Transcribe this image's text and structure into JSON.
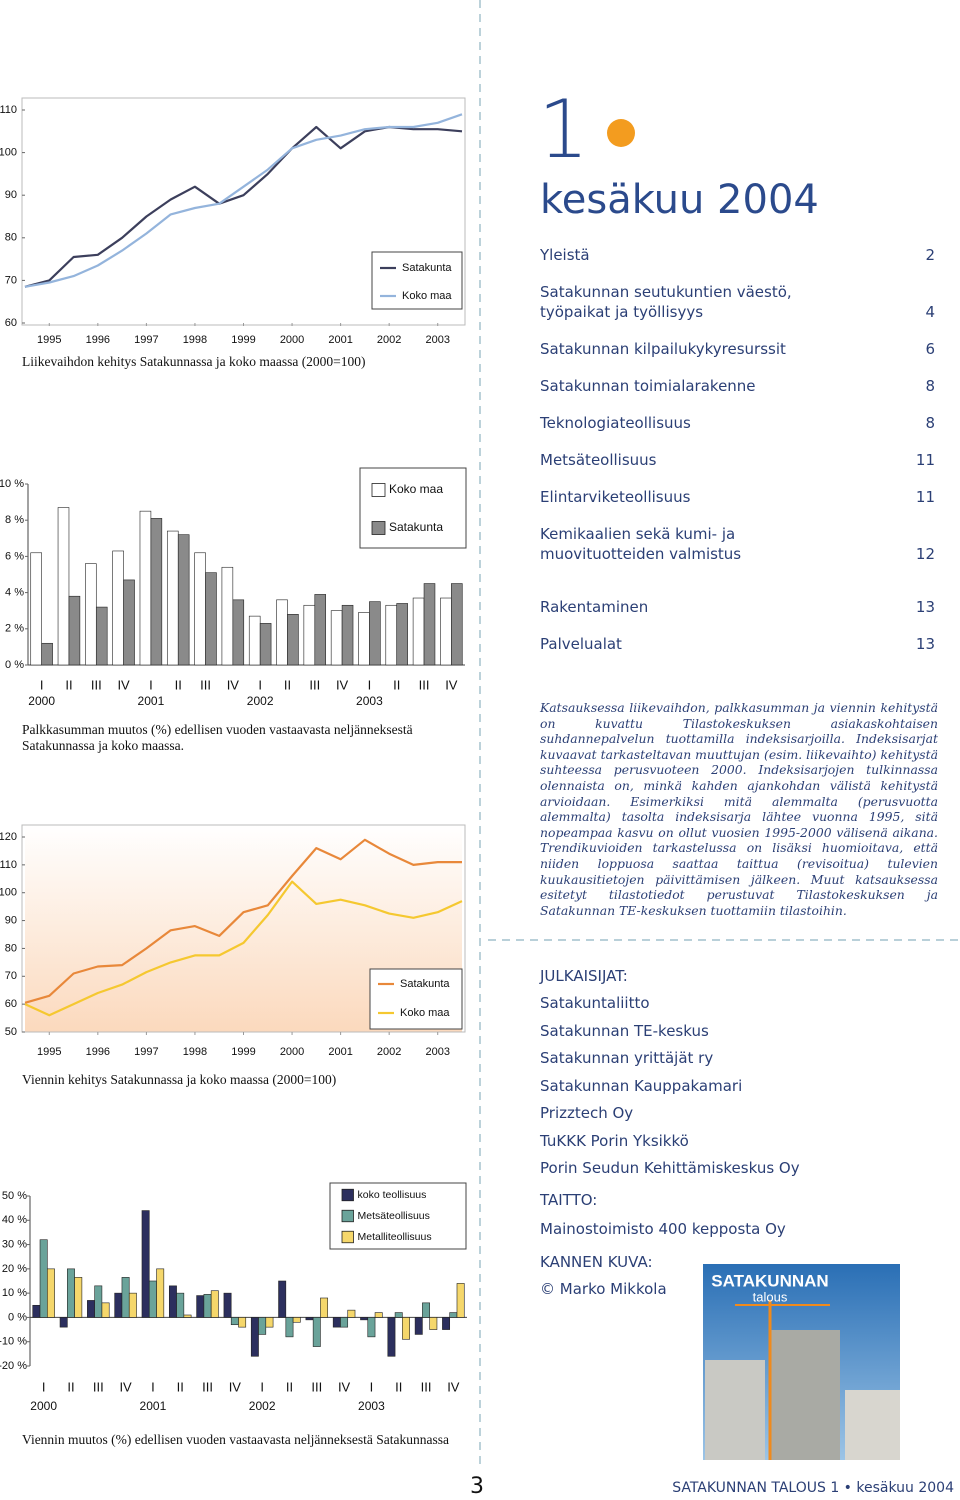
{
  "chart_data": [
    {
      "type": "line",
      "caption": "Liikevaihdon kehitys Satakunnassa ja koko maassa (2000=100)",
      "x": [
        1995,
        1995.5,
        1996,
        1996.5,
        1997,
        1997.5,
        1998,
        1998.5,
        1999,
        1999.5,
        2000,
        2000.5,
        2001,
        2001.5,
        2002,
        2002.5,
        2003,
        2003.5,
        2004
      ],
      "xlim": [
        1995,
        2004
      ],
      "xticks": [
        {
          "value": 1995.5,
          "label": "1995"
        },
        {
          "value": 1996.5,
          "label": "1996"
        },
        {
          "value": 1997.5,
          "label": "1997"
        },
        {
          "value": 1998.5,
          "label": "1998"
        },
        {
          "value": 1999.5,
          "label": "1999"
        },
        {
          "value": 2000.5,
          "label": "2000"
        },
        {
          "value": 2001.5,
          "label": "2001"
        },
        {
          "value": 2002.5,
          "label": "2002"
        },
        {
          "value": 2003.5,
          "label": "2003"
        }
      ],
      "ylim": [
        60,
        110
      ],
      "yticks": [
        60,
        70,
        80,
        90,
        100,
        110
      ],
      "series": [
        {
          "name": "Satakunta",
          "color": "#3c3f5c",
          "values": [
            68.5,
            70,
            75.5,
            76,
            80,
            85,
            89,
            92,
            88,
            90,
            95,
            101,
            106,
            101,
            105,
            106,
            105.5,
            105.5,
            105
          ]
        },
        {
          "name": "Koko maa",
          "color": "#94b4dc",
          "values": [
            68.5,
            69.5,
            71,
            73.5,
            77,
            81,
            85.5,
            87,
            88,
            92,
            96,
            101,
            103,
            104,
            105.5,
            106,
            106,
            107,
            109
          ]
        }
      ]
    },
    {
      "type": "bar",
      "caption": "Palkkasumman muutos (%) edellisen vuoden vastaavasta neljänneksestä Satakunnassa ja koko maassa.",
      "categories": [
        "I",
        "II",
        "III",
        "IV",
        "I",
        "II",
        "III",
        "IV",
        "I",
        "II",
        "III",
        "IV",
        "I",
        "II",
        "III",
        "IV"
      ],
      "years": [
        "2000",
        "2001",
        "2002",
        "2003"
      ],
      "ylim": [
        0,
        10
      ],
      "yticks": [
        {
          "value": 0,
          "label": "0 %"
        },
        {
          "value": 2,
          "label": "2 %"
        },
        {
          "value": 4,
          "label": "4 %"
        },
        {
          "value": 6,
          "label": "6 %"
        },
        {
          "value": 8,
          "label": "8 %"
        },
        {
          "value": 10,
          "label": "10 %"
        }
      ],
      "series": [
        {
          "name": "Koko maa",
          "color": "#ffffff",
          "values": [
            6.2,
            8.7,
            5.6,
            6.3,
            8.5,
            7.4,
            6.2,
            5.4,
            2.7,
            3.6,
            3.3,
            3.0,
            2.9,
            3.3,
            3.7,
            3.7
          ]
        },
        {
          "name": "Satakunta",
          "color": "#8a8a8a",
          "values": [
            1.2,
            3.8,
            3.2,
            4.7,
            8.1,
            7.2,
            5.1,
            3.6,
            2.3,
            2.8,
            3.9,
            3.3,
            3.5,
            3.4,
            4.5,
            4.5
          ]
        }
      ]
    },
    {
      "type": "line",
      "caption": "Viennin kehitys Satakunnassa ja koko maassa (2000=100)",
      "x": [
        1995,
        1995.5,
        1996,
        1996.5,
        1997,
        1997.5,
        1998,
        1998.5,
        1999,
        1999.5,
        2000,
        2000.5,
        2001,
        2001.5,
        2002,
        2002.5,
        2003,
        2003.5,
        2004
      ],
      "xlim": [
        1995,
        2004
      ],
      "xticks": [
        {
          "value": 1995.5,
          "label": "1995"
        },
        {
          "value": 1996.5,
          "label": "1996"
        },
        {
          "value": 1997.5,
          "label": "1997"
        },
        {
          "value": 1998.5,
          "label": "1998"
        },
        {
          "value": 1999.5,
          "label": "1999"
        },
        {
          "value": 2000.5,
          "label": "2000"
        },
        {
          "value": 2001.5,
          "label": "2001"
        },
        {
          "value": 2002.5,
          "label": "2002"
        },
        {
          "value": 2003.5,
          "label": "2003"
        }
      ],
      "ylim": [
        50,
        120
      ],
      "yticks": [
        50,
        60,
        70,
        80,
        90,
        100,
        110,
        120
      ],
      "series": [
        {
          "name": "Satakunta",
          "color": "#e8883a",
          "values": [
            60.5,
            63,
            71,
            73.5,
            74,
            80,
            86.5,
            88,
            84.5,
            93,
            95.5,
            106,
            116,
            112,
            119,
            114,
            110,
            111,
            111
          ]
        },
        {
          "name": "Koko maa",
          "color": "#f5c830",
          "values": [
            60,
            56,
            60,
            64,
            67,
            71.5,
            75,
            77.5,
            77.5,
            82,
            92,
            104,
            96,
            97.5,
            95.5,
            92.5,
            91,
            93,
            97
          ]
        }
      ]
    },
    {
      "type": "bar",
      "caption": "Viennin muutos (%) edellisen vuoden vastaavasta neljänneksestä Satakunnassa",
      "categories": [
        "I",
        "II",
        "III",
        "IV",
        "I",
        "II",
        "III",
        "IV",
        "I",
        "II",
        "III",
        "IV",
        "I",
        "II",
        "III",
        "IV"
      ],
      "years": [
        "2000",
        "2001",
        "2002",
        "2003"
      ],
      "ylim": [
        -20,
        50
      ],
      "yticks": [
        {
          "value": -20,
          "label": "-20 %"
        },
        {
          "value": -10,
          "label": "-10 %"
        },
        {
          "value": 0,
          "label": "0 %"
        },
        {
          "value": 10,
          "label": "10 %"
        },
        {
          "value": 20,
          "label": "20 %"
        },
        {
          "value": 30,
          "label": "30 %"
        },
        {
          "value": 40,
          "label": "40 %"
        },
        {
          "value": 50,
          "label": "50 %"
        }
      ],
      "series": [
        {
          "name": "koko teollisuus",
          "color": "#2c2f5e",
          "values": [
            5,
            -4,
            7,
            10,
            44,
            13,
            9,
            10,
            -16,
            15,
            -1,
            -4,
            -1,
            -16,
            -7,
            -5
          ]
        },
        {
          "name": "Metsäteollisuus",
          "color": "#6aa39a",
          "values": [
            32,
            20,
            13,
            16.5,
            15,
            10,
            9.5,
            -3,
            -7,
            -8,
            -12,
            -4,
            -8,
            2,
            6,
            2
          ]
        },
        {
          "name": "Metalliteollisuus",
          "color": "#f5d76b",
          "values": [
            20,
            16.5,
            6,
            10,
            20,
            1,
            11,
            -4,
            -4,
            -2,
            8,
            3,
            2,
            -9,
            -5,
            14
          ]
        }
      ]
    }
  ],
  "issue": {
    "number": "1",
    "date": "kesäkuu 2004"
  },
  "contents": [
    {
      "title": "Yleistä",
      "page": 2
    },
    {
      "title": "Satakunnan seutukuntien väestö, työpaikat ja työllisyys",
      "page": 4
    },
    {
      "title": "Satakunnan kilpailukykyresurssit",
      "page": 6
    },
    {
      "title": "Satakunnan toimialarakenne",
      "page": 8
    },
    {
      "title": "Teknologiateollisuus",
      "page": 8
    },
    {
      "title": "Metsäteollisuus",
      "page": 11
    },
    {
      "title": "Elintarviketeollisuus",
      "page": 11
    },
    {
      "title": "Kemikaalien sekä kumi- ja muovituotteiden valmistus",
      "page": 12
    },
    {
      "title": "Rakentaminen",
      "page": 13
    },
    {
      "title": "Palvelualat",
      "page": 13
    }
  ],
  "note": "Katsauksessa liikevaihdon, palkkasumman ja viennin kehitystä on kuvattu Tilastokeskuksen asiakaskohtaisen suhdannepalvelun tuottamilla indeksisarjoilla. Indeksisarjat kuvaavat tarkasteltavan muuttujan (esim. liikevaihto) kehitystä suhteessa perusvuoteen 2000. Indeksisarjojen tulkinnassa olennaista on, minkä kahden ajankohdan välistä kehitystä arvioidaan. Esimerkiksi mitä alemmalta (perusvuotta alemmalta) tasolta indeksisarja lähtee vuonna 1995, sitä nopeampaa kasvu on ollut vuosien 1995-2000 välisenä aikana. Trendikuvioiden tarkastelussa on lisäksi huomioitava, että niiden loppuosa saattaa taittua (revisoitua) tulevien kuukausitietojen päivittämisen jälkeen. Muut katsauksessa esitetyt tilastotiedot perustuvat Tilastokeskuksen ja Satakunnan TE-keskuksen tuottamiin tilastoihin.",
  "publishers": {
    "heading": "JULKAISIJAT:",
    "items": [
      "Satakuntaliitto",
      "Satakunnan TE-keskus",
      "Satakunnan yrittäjät ry",
      "Satakunnan Kauppakamari",
      "Prizztech Oy",
      "TuKKK Porin Yksikkö",
      "Porin Seudun Kehittämiskeskus Oy"
    ]
  },
  "layout_credit": {
    "heading": "TAITTO:",
    "name": "Mainostoimisto 400 kepposta Oy"
  },
  "cover_credit": {
    "heading": "KANNEN KUVA:",
    "name": "© Marko Mikkola"
  },
  "cover": {
    "title": "SATAKUNNAN",
    "subtitle": "talous"
  },
  "footer": {
    "page": "3",
    "text": "SATAKUNNAN TALOUS 1 • kesäkuu 2004"
  }
}
